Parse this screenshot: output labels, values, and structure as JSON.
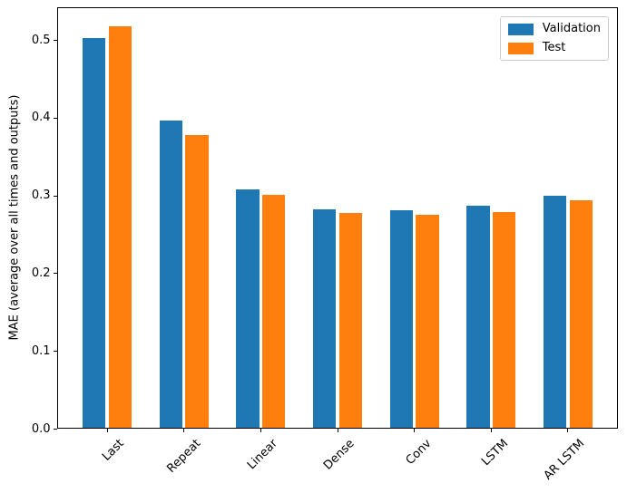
{
  "chart_data": {
    "type": "bar",
    "title": "",
    "xlabel": "",
    "ylabel": "MAE (average over all times and outputs)",
    "categories": [
      "Last",
      "Repeat",
      "Linear",
      "Dense",
      "Conv",
      "LSTM",
      "AR LSTM"
    ],
    "series": [
      {
        "name": "Validation",
        "color": "#1f77b4",
        "values": [
          0.501,
          0.395,
          0.306,
          0.281,
          0.28,
          0.286,
          0.298
        ]
      },
      {
        "name": "Test",
        "color": "#ff7f0e",
        "values": [
          0.516,
          0.377,
          0.299,
          0.276,
          0.274,
          0.277,
          0.292
        ]
      }
    ],
    "ylim": [
      0,
      0.542
    ],
    "yticks": [
      0.0,
      0.1,
      0.2,
      0.3,
      0.4,
      0.5
    ],
    "ytick_labels": [
      "0.0",
      "0.1",
      "0.2",
      "0.3",
      "0.4",
      "0.5"
    ],
    "xlim": [
      -0.652,
      6.652
    ],
    "bar_width_units": 0.3,
    "group_offset_units": 0.17,
    "x_tick_rotation_deg": 45,
    "grid": false,
    "legend_position": "upper right",
    "spine_color": "#000000",
    "background_color": "#ffffff"
  }
}
